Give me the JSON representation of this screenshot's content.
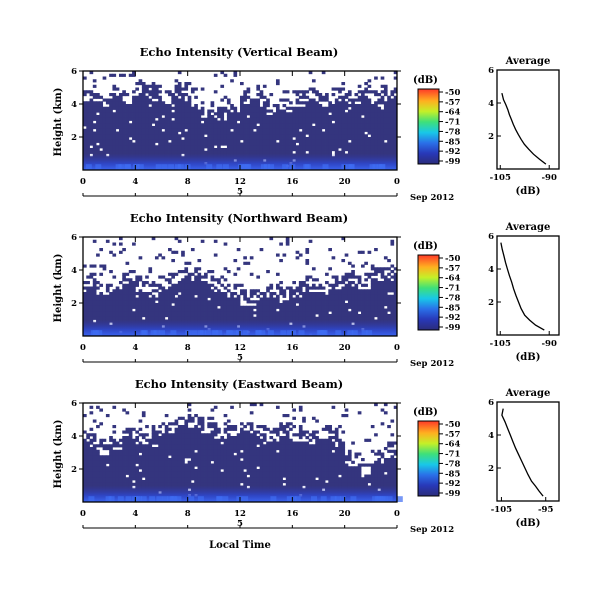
{
  "chart_data": [
    {
      "type": "heatmap",
      "title": "Echo Intensity (Vertical Beam)",
      "ylabel": "Height (km)",
      "x_ticks": [
        "0",
        "4",
        "8",
        "12",
        "16",
        "20",
        "0"
      ],
      "y_ticks": [
        "6",
        "4",
        "2"
      ],
      "xlim": [
        0,
        24
      ],
      "ylim": [
        0,
        6
      ],
      "day_label": "5",
      "date_label": "Sep 2012",
      "colorbar": {
        "unit": "(dB)",
        "ticks": [
          "-50",
          "-57",
          "-64",
          "-71",
          "-78",
          "-85",
          "-92",
          "-99"
        ]
      },
      "low_echo_top_km": [
        4.4,
        4.1,
        4.6,
        4.3,
        4.8,
        4.5,
        4.2,
        4.7,
        3.9,
        3.5,
        3.3,
        3.8,
        4.2,
        4.0,
        3.6,
        3.8,
        4.2,
        4.4,
        4.1,
        4.5,
        4.3,
        4.6,
        4.2,
        4.4
      ],
      "average_profile": {
        "title": "Average",
        "xlabel": "(dB)",
        "x_ticks": [
          "-105",
          "-90"
        ],
        "y_ticks": [
          "6",
          "4",
          "2"
        ],
        "x": [
          -104.5,
          -104.0,
          -103.3,
          -102.7,
          -102.2,
          -101.6,
          -101.0,
          -100.3,
          -99.5,
          -98.6,
          -97.6,
          -96.3,
          -94.8,
          -93.0,
          -91.0
        ],
        "y": [
          4.6,
          4.2,
          3.9,
          3.6,
          3.3,
          3.0,
          2.7,
          2.4,
          2.1,
          1.8,
          1.5,
          1.2,
          0.9,
          0.6,
          0.3
        ]
      }
    },
    {
      "type": "heatmap",
      "title": "Echo Intensity (Northward Beam)",
      "ylabel": "Height (km)",
      "x_ticks": [
        "0",
        "4",
        "8",
        "12",
        "16",
        "20",
        "0"
      ],
      "y_ticks": [
        "6",
        "4",
        "2"
      ],
      "xlim": [
        0,
        24
      ],
      "ylim": [
        0,
        6
      ],
      "day_label": "5",
      "date_label": "Sep 2012",
      "colorbar": {
        "unit": "(dB)",
        "ticks": [
          "-50",
          "-57",
          "-64",
          "-71",
          "-78",
          "-85",
          "-92",
          "-99"
        ]
      },
      "low_echo_top_km": [
        3.2,
        2.8,
        3.0,
        3.4,
        3.0,
        2.7,
        3.2,
        3.5,
        3.6,
        3.4,
        3.0,
        2.6,
        2.2,
        2.4,
        2.6,
        2.4,
        2.7,
        3.0,
        2.8,
        3.1,
        3.4,
        3.2,
        3.6,
        3.8
      ],
      "average_profile": {
        "title": "Average",
        "xlabel": "(dB)",
        "x_ticks": [
          "-105",
          "-90"
        ],
        "y_ticks": [
          "6",
          "4",
          "2"
        ],
        "x": [
          -104.8,
          -104.4,
          -103.9,
          -103.4,
          -102.8,
          -102.2,
          -101.5,
          -100.9,
          -100.2,
          -99.4,
          -98.6,
          -97.5,
          -96.0,
          -94.2,
          -91.5
        ],
        "y": [
          5.6,
          5.2,
          4.8,
          4.4,
          4.0,
          3.6,
          3.2,
          2.8,
          2.4,
          2.0,
          1.6,
          1.2,
          0.9,
          0.6,
          0.3
        ]
      }
    },
    {
      "type": "heatmap",
      "title": "Echo Intensity (Eastward Beam)",
      "ylabel": "Height (km)",
      "x_ticks": [
        "0",
        "4",
        "8",
        "12",
        "16",
        "20",
        "0"
      ],
      "y_ticks": [
        "6",
        "4",
        "2"
      ],
      "xlim": [
        0,
        24
      ],
      "ylim": [
        0,
        6
      ],
      "day_label": "5",
      "date_label": "Sep 2012",
      "xlabel": "Local Time",
      "colorbar": {
        "unit": "(dB)",
        "ticks": [
          "-50",
          "-57",
          "-64",
          "-71",
          "-78",
          "-85",
          "-92",
          "-99"
        ]
      },
      "low_echo_top_km": [
        3.6,
        3.2,
        3.5,
        3.9,
        3.7,
        4.1,
        4.4,
        4.6,
        4.8,
        4.5,
        4.2,
        4.0,
        4.3,
        4.1,
        3.9,
        4.2,
        4.0,
        3.8,
        4.1,
        3.7,
        2.4,
        1.8,
        2.6,
        3.0
      ],
      "average_profile": {
        "title": "Average",
        "xlabel": "(dB)",
        "x_ticks": [
          "-105",
          "-95"
        ],
        "y_ticks": [
          "6",
          "4",
          "2"
        ],
        "x": [
          -104.6,
          -104.9,
          -104.2,
          -103.6,
          -103.0,
          -102.4,
          -101.8,
          -101.1,
          -100.4,
          -99.7,
          -99.0,
          -98.2,
          -97.3,
          -96.5,
          -95.6
        ],
        "y": [
          5.6,
          5.2,
          4.8,
          4.4,
          4.0,
          3.6,
          3.2,
          2.8,
          2.4,
          2.0,
          1.6,
          1.2,
          0.9,
          0.6,
          0.3
        ]
      }
    }
  ]
}
